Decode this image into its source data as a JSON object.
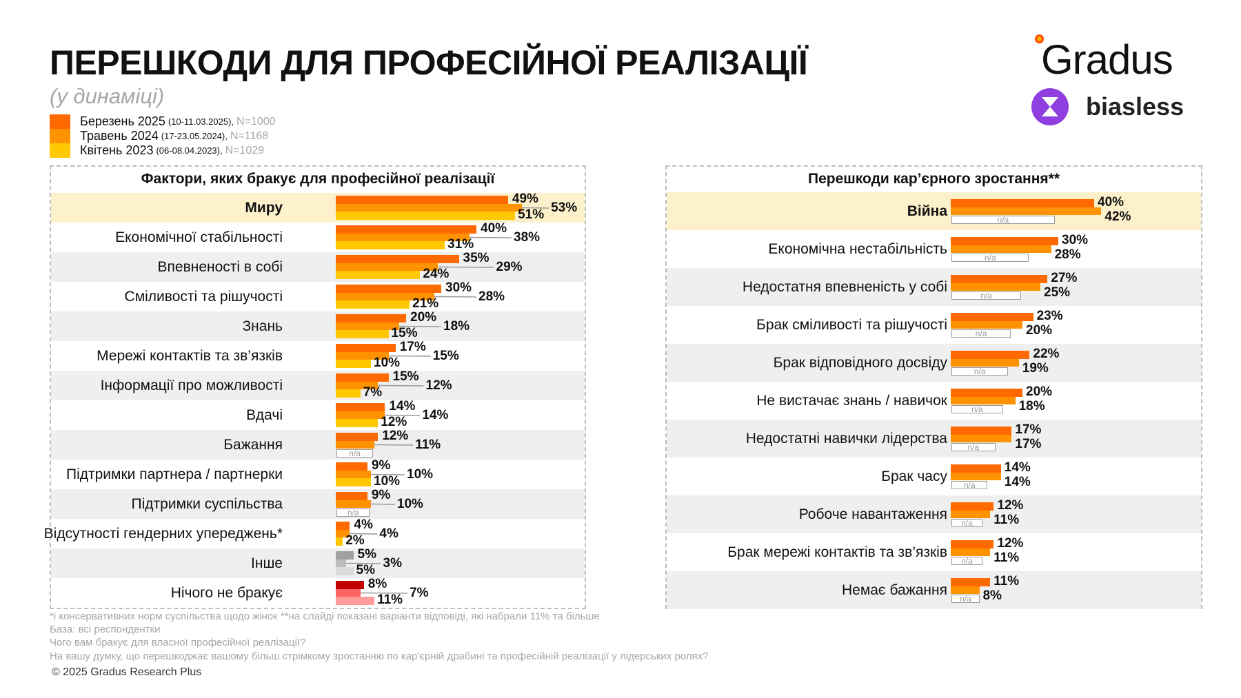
{
  "title": "ПЕРЕШКОДИ ДЛЯ ПРОФЕСІЙНОЇ РЕАЛІЗАЦІЇ",
  "subtitle": "(у динаміці)",
  "legend": [
    {
      "label": "Березень 2025",
      "dates": "(10-11.03.2025),",
      "n": "N=1000",
      "color": "#ff6a00"
    },
    {
      "label": "Травень 2024",
      "dates": "(17-23.05.2024),",
      "n": "N=1168",
      "color": "#ff9200"
    },
    {
      "label": "Квітень 2023",
      "dates": "(06-08.04.2023),",
      "n": "N=1029",
      "color": "#ffc800"
    }
  ],
  "logos": {
    "gradus": "Gradus",
    "biasless": "biasless"
  },
  "na_label": "n/a",
  "chart_data": [
    {
      "type": "bar",
      "orientation": "horizontal",
      "title": "Фактори, яких бракує для професійної реалізації",
      "highlight": "Миру",
      "categories": [
        "Миру",
        "Економічної стабільності",
        "Впевненості в собі",
        "Сміливості та рішучості",
        "Знань",
        "Мережі контактів та зв’язків",
        "Інформації про можливості",
        "Вдачі",
        "Бажання",
        "Підтримки партнера / партнерки",
        "Підтримки суспільства",
        "Відсутності гендерних упереджень*",
        "Інше",
        "Нічого не бракує"
      ],
      "series": [
        {
          "name": "Березень 2025",
          "values": [
            49,
            40,
            35,
            30,
            20,
            17,
            15,
            14,
            12,
            9,
            9,
            4,
            5,
            8
          ]
        },
        {
          "name": "Травень 2024",
          "values": [
            53,
            38,
            29,
            28,
            18,
            15,
            12,
            14,
            11,
            10,
            10,
            4,
            3,
            7
          ]
        },
        {
          "name": "Квітень 2023",
          "values": [
            51,
            31,
            24,
            21,
            15,
            10,
            7,
            12,
            null,
            10,
            null,
            2,
            5,
            11
          ]
        }
      ],
      "special_colors": {
        "Інше": [
          "#a0a0a0",
          "#bcbcbc",
          "#dadada"
        ],
        "Нічого не бракує": [
          "#c00000",
          "#ff6262",
          "#ff9c9c"
        ]
      },
      "unit": "%"
    },
    {
      "type": "bar",
      "orientation": "horizontal",
      "title": "Перешкоди кар’єрного зростання**",
      "highlight": "Війна",
      "categories": [
        "Війна",
        "Економічна нестабільність",
        "Недостатня впевненість у собі",
        "Брак сміливості та рішучості",
        "Брак відповідного досвіду",
        "Не вистачає знань / навичок",
        "Недостатні навички лідерства",
        "Брак часу",
        "Робоче навантаження",
        "Брак мережі контактів та зв’язків",
        "Немає бажання"
      ],
      "series": [
        {
          "name": "Березень 2025",
          "values": [
            40,
            30,
            27,
            23,
            22,
            20,
            17,
            14,
            12,
            12,
            11
          ]
        },
        {
          "name": "Травень 2024",
          "values": [
            42,
            28,
            25,
            20,
            19,
            18,
            17,
            14,
            11,
            11,
            8
          ]
        },
        {
          "name": "Квітень 2023",
          "values": [
            null,
            null,
            null,
            null,
            null,
            null,
            null,
            null,
            null,
            null,
            null
          ]
        }
      ],
      "unit": "%"
    }
  ],
  "footnotes": [
    "*і консервативних норм суспільства щодо жінок **на слайді показані варіанти відповіді, які набрали 11% та більше",
    "База: всі респондентки",
    "Чого вам бракує для власної професійної реалізації?",
    "На вашу думку, що перешкоджає вашому більш стрімкому зростанню по кар'єрній драбині та професійній реалізації у лідерських ролях?"
  ],
  "copyright": "© 2025 Gradus Research Plus"
}
